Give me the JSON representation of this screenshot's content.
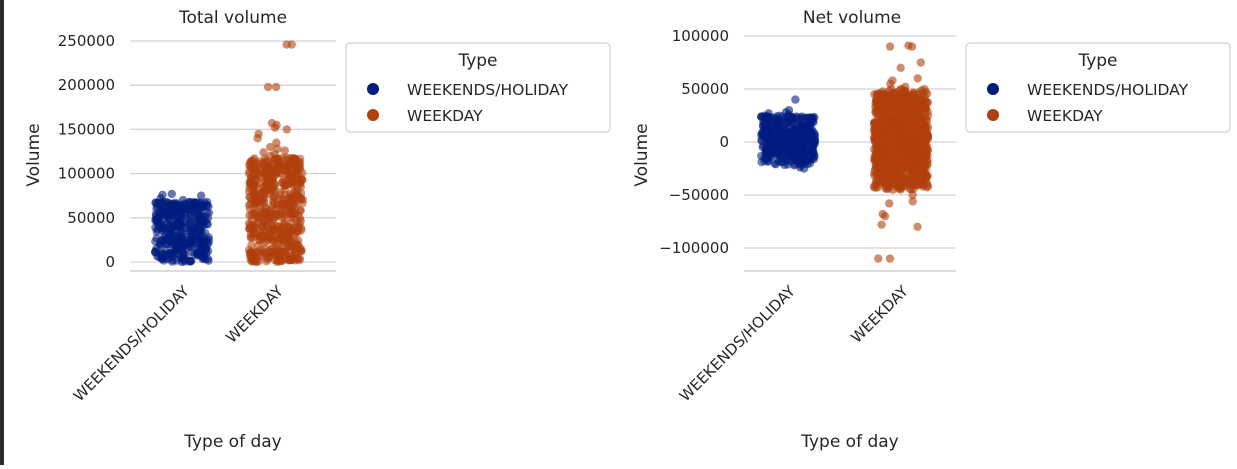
{
  "chart_data": [
    {
      "type": "scatter",
      "style": "strip",
      "title": "Total volume",
      "xlabel": "Type of day",
      "ylabel": "Volume",
      "categories": [
        "WEEKENDS/HOLIDAY",
        "WEEKDAY"
      ],
      "yticks": [
        0,
        50000,
        100000,
        150000,
        200000,
        250000
      ],
      "ytick_labels": [
        "0",
        "50000",
        "100000",
        "150000",
        "200000",
        "250000"
      ],
      "ylim": [
        -10000,
        258000
      ],
      "grid": "horizontal",
      "legend": {
        "title": "Type",
        "placement": "upper-right-outside",
        "entries": [
          "WEEKENDS/HOLIDAY",
          "WEEKDAY"
        ]
      },
      "series": [
        {
          "name": "WEEKENDS/HOLIDAY",
          "color": "#001c7f",
          "dense": [
            [
              0,
              35000
            ],
            [
              35000,
              58000
            ],
            [
              58000,
              68000
            ]
          ],
          "values": [
            0,
            1000,
            2000,
            5000,
            10000,
            15000,
            20000,
            25000,
            30000,
            35000,
            40000,
            45000,
            50000,
            55000,
            60000,
            62000,
            64000,
            66000,
            68000,
            70000,
            72000,
            75000,
            76000,
            77000
          ]
        },
        {
          "name": "WEEKDAY",
          "color": "#b1400d",
          "dense": [
            [
              0,
              60000
            ],
            [
              60000,
              100000
            ],
            [
              100000,
              118000
            ]
          ],
          "values": [
            0,
            2000,
            5000,
            10000,
            20000,
            30000,
            40000,
            50000,
            60000,
            70000,
            80000,
            90000,
            100000,
            105000,
            110000,
            115000,
            118000,
            120000,
            122000,
            124000,
            126000,
            128000,
            130000,
            135000,
            140000,
            145000,
            150000,
            152000,
            155000,
            157000,
            198000,
            198000,
            246000,
            246000
          ]
        }
      ]
    },
    {
      "type": "scatter",
      "style": "strip",
      "title": "Net volume",
      "xlabel": "Type of day",
      "ylabel": "Volume",
      "categories": [
        "WEEKENDS/HOLIDAY",
        "WEEKDAY"
      ],
      "yticks": [
        -100000,
        -50000,
        0,
        50000,
        100000
      ],
      "ytick_labels": [
        "−100000",
        "−50000",
        "0",
        "50000",
        "100000"
      ],
      "ylim": [
        -122000,
        103000
      ],
      "grid": "horizontal",
      "legend": {
        "title": "Type",
        "placement": "upper-right-outside",
        "entries": [
          "WEEKENDS/HOLIDAY",
          "WEEKDAY"
        ]
      },
      "series": [
        {
          "name": "WEEKENDS/HOLIDAY",
          "color": "#001c7f",
          "dense": [
            [
              -15000,
              15000
            ],
            [
              -22000,
              25000
            ]
          ],
          "values": [
            -25000,
            -24000,
            -22000,
            -20000,
            -18000,
            -15000,
            -10000,
            -5000,
            0,
            5000,
            10000,
            15000,
            20000,
            22000,
            24000,
            26000,
            27000,
            28000,
            30000,
            40000
          ]
        },
        {
          "name": "WEEKDAY",
          "color": "#b1400d",
          "dense": [
            [
              -20000,
              20000
            ],
            [
              -40000,
              45000
            ],
            [
              -45000,
              50000
            ]
          ],
          "values": [
            -110000,
            -110000,
            -80000,
            -78000,
            -70000,
            -68000,
            -58000,
            -56000,
            -50000,
            -45000,
            -40000,
            -35000,
            -30000,
            -20000,
            -10000,
            0,
            10000,
            20000,
            30000,
            40000,
            45000,
            48000,
            50000,
            52000,
            55000,
            58000,
            60000,
            70000,
            75000,
            90000,
            90000,
            91000
          ]
        }
      ]
    }
  ]
}
